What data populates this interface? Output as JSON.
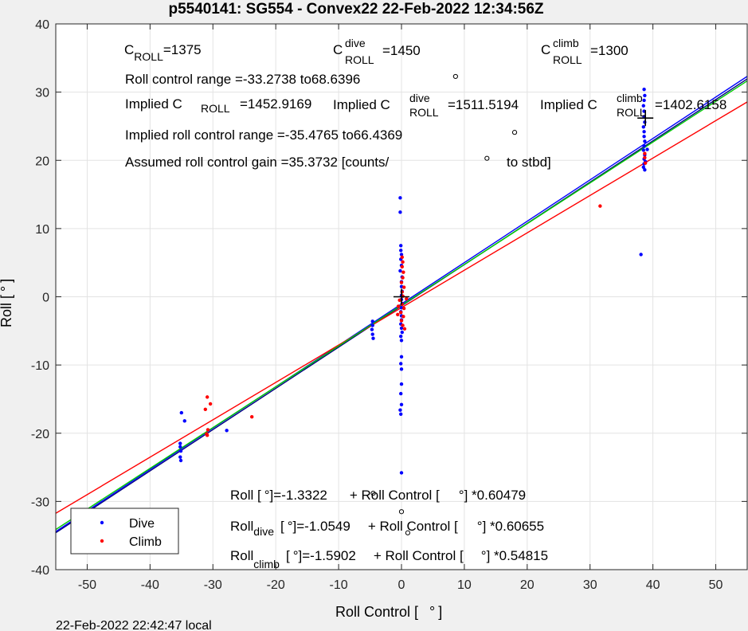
{
  "chart_data": {
    "type": "scatter",
    "title": "p5540141: SG554 - Convex22 22-Feb-2022 12:34:56Z",
    "xlabel": {
      "text": "Roll Control [",
      "symbol": "°",
      "close": "]"
    },
    "ylabel": {
      "text": "Roll [",
      "symbol": "°",
      "close": "]"
    },
    "xlim": [
      -55,
      55
    ],
    "ylim": [
      -40,
      40
    ],
    "xticks": [
      -50,
      -40,
      -30,
      -20,
      -10,
      0,
      10,
      20,
      30,
      40,
      50
    ],
    "yticks": [
      -40,
      -30,
      -20,
      -10,
      0,
      10,
      20,
      30,
      40
    ],
    "grid": true,
    "legend": {
      "placement": "bottom-left",
      "entries": [
        "Dive",
        "Climb"
      ]
    },
    "colors": {
      "dive": "#0000ff",
      "climb": "#ff0000",
      "fit_all": "#000080",
      "fit_dive": "#0000ff",
      "fit_climb": "#ff0000",
      "green": "#00cc00",
      "marker": "#000000"
    },
    "series": [
      {
        "name": "Dive",
        "points": [
          [
            -35.2,
            -21.5
          ],
          [
            -35.2,
            -22
          ],
          [
            -35.1,
            -22.6
          ],
          [
            -35.2,
            -23.5
          ],
          [
            -35.1,
            -24
          ],
          [
            -34.5,
            -18.2
          ],
          [
            -35,
            -17
          ],
          [
            -27.8,
            -19.6
          ],
          [
            -4.6,
            -3.6
          ],
          [
            -4.6,
            -4.2
          ],
          [
            -4.7,
            -4.8
          ],
          [
            -4.6,
            -5.5
          ],
          [
            -4.5,
            -6.1
          ],
          [
            -0.2,
            14.5
          ],
          [
            -0.2,
            12.4
          ],
          [
            -0.1,
            7.5
          ],
          [
            -0.1,
            6.8
          ],
          [
            0,
            6.2
          ],
          [
            -0.1,
            5.5
          ],
          [
            0,
            4.6
          ],
          [
            -0.2,
            3.8
          ],
          [
            0.1,
            2.9
          ],
          [
            0,
            2.2
          ],
          [
            0,
            1.5
          ],
          [
            0.1,
            0.8
          ],
          [
            0,
            0.2
          ],
          [
            0,
            -0.4
          ],
          [
            0.1,
            -1
          ],
          [
            0,
            -1.6
          ],
          [
            -0.1,
            -2.2
          ],
          [
            0,
            -2.8
          ],
          [
            0,
            -3.4
          ],
          [
            -0.1,
            -4
          ],
          [
            0,
            -4.6
          ],
          [
            0.1,
            -5.2
          ],
          [
            -0.1,
            -5.8
          ],
          [
            0,
            -6.4
          ],
          [
            0,
            -8.8
          ],
          [
            -0.1,
            -9.8
          ],
          [
            0,
            -10.6
          ],
          [
            0,
            -12.8
          ],
          [
            -0.1,
            -14.2
          ],
          [
            0,
            -15.8
          ],
          [
            -0.2,
            -16.6
          ],
          [
            -0.1,
            -17.2
          ],
          [
            0,
            -25.8
          ],
          [
            38.6,
            30.4
          ],
          [
            38.7,
            29.5
          ],
          [
            38.6,
            28.8
          ],
          [
            38.5,
            28
          ],
          [
            38.6,
            27.2
          ],
          [
            38.6,
            26.4
          ],
          [
            38.7,
            25.6
          ],
          [
            38.5,
            24.9
          ],
          [
            38.6,
            24.2
          ],
          [
            38.6,
            23.5
          ],
          [
            38.7,
            22.8
          ],
          [
            38.6,
            22.1
          ],
          [
            38.5,
            21.5
          ],
          [
            38.7,
            20.8
          ],
          [
            38.6,
            20.2
          ],
          [
            38.6,
            19.5
          ],
          [
            38.5,
            19
          ],
          [
            38.7,
            18.6
          ],
          [
            39.1,
            21.6
          ],
          [
            38.8,
            19.8
          ],
          [
            38.1,
            6.2
          ]
        ]
      },
      {
        "name": "Climb",
        "points": [
          [
            -30.9,
            -14.7
          ],
          [
            -30.4,
            -15.7
          ],
          [
            -31.2,
            -16.5
          ],
          [
            -30.8,
            -19.5
          ],
          [
            -30.9,
            -20.3
          ],
          [
            -31,
            -20.1
          ],
          [
            -23.8,
            -17.6
          ],
          [
            0.1,
            5.8
          ],
          [
            0.2,
            5.1
          ],
          [
            0.1,
            4.4
          ],
          [
            0.3,
            3.6
          ],
          [
            0.2,
            2.8
          ],
          [
            0,
            2.1
          ],
          [
            0.4,
            1.4
          ],
          [
            0.1,
            0.7
          ],
          [
            0.2,
            0.1
          ],
          [
            -0.3,
            -0.5
          ],
          [
            0.1,
            -1.1
          ],
          [
            0.4,
            -1.7
          ],
          [
            -0.1,
            -2.3
          ],
          [
            0.3,
            -2.9
          ],
          [
            0,
            -3.5
          ],
          [
            0.2,
            -4.2
          ],
          [
            0.5,
            -4.7
          ],
          [
            -0.5,
            -1.4
          ],
          [
            -0.6,
            -2.6
          ],
          [
            0.8,
            -0.3
          ],
          [
            31.6,
            13.3
          ],
          [
            38.7,
            20.4
          ],
          [
            38.8,
            19.6
          ],
          [
            38.7,
            21
          ]
        ]
      }
    ],
    "fit_lines": [
      {
        "color_key": "fit_all",
        "intercept": -1.3322,
        "slope": 0.60479
      },
      {
        "color_key": "fit_dive",
        "intercept": -1.0549,
        "slope": 0.60655
      },
      {
        "color_key": "fit_climb",
        "intercept": -1.5902,
        "slope": 0.54815
      },
      {
        "color_key": "green",
        "intercept": -1.24,
        "slope": 0.5978
      }
    ],
    "markers": [
      {
        "shape": "plus",
        "x": 0,
        "y": 0,
        "color_key": "marker"
      },
      {
        "shape": "plus",
        "x": 38.8,
        "y": 26.2,
        "color_key": "marker"
      },
      {
        "shape": "degree-symbol",
        "x": 8.6,
        "y": 32.3
      },
      {
        "shape": "degree-symbol",
        "x": 18,
        "y": 24.1
      },
      {
        "shape": "degree-symbol",
        "x": 13.6,
        "y": 20.3
      },
      {
        "shape": "degree-symbol",
        "x": -4.5,
        "y": -28.8
      },
      {
        "shape": "degree-symbol",
        "x": 0,
        "y": -31.5
      },
      {
        "shape": "degree-symbol",
        "x": 1,
        "y": -34.6
      }
    ],
    "annotations": {
      "c_roll": {
        "base": "C",
        "sub": "ROLL",
        "value": "=1375"
      },
      "c_roll_dive": {
        "base": "C",
        "sup": "dive",
        "sub": "ROLL",
        "value": "=1450"
      },
      "c_roll_climb": {
        "base": "C",
        "sup": "climb",
        "sub": "ROLL",
        "value": "=1300"
      },
      "roll_control_range": "Roll control range =-33.2738 to68.6396",
      "implied_c_roll": {
        "label": "Implied C",
        "sub": "ROLL",
        "value": "=1452.9169"
      },
      "implied_c_roll_dive": {
        "label": "Implied C",
        "sup": "dive",
        "sub": "ROLL",
        "value": "=1511.5194"
      },
      "implied_c_roll_climb": {
        "label": "Implied C",
        "sup": "climb",
        "sub": "ROLL",
        "value": "=1402.6158"
      },
      "implied_range": "Implied roll control range =-35.4765 to66.4369",
      "assumed_gain": "Assumed roll control gain =35.3732 [counts/",
      "assumed_gain_tail": "to stbd]",
      "fit_all": {
        "label": "Roll [",
        "mid": "]=-1.3322",
        "rest": "+ Roll Control [",
        "end": "] *0.60479"
      },
      "fit_dive": {
        "label": "Roll",
        "sub": "dive",
        "mid": "[",
        "mid2": "]=-1.0549",
        "rest": "+ Roll Control [",
        "end": "] *0.60655"
      },
      "fit_climb": {
        "label": "Roll",
        "sub": "climb",
        "mid": "[",
        "mid2": "]=-1.5902",
        "rest": "+ Roll Control [",
        "end": "] *0.54815"
      },
      "degree": "°"
    }
  },
  "footer": {
    "timestamp": "22-Feb-2022 22:42:47 local"
  }
}
